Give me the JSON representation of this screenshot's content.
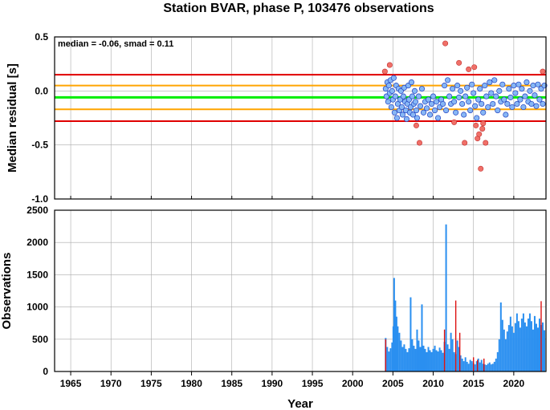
{
  "title": "Station BVAR, phase P, 103476 observations",
  "colors": {
    "median_line": "#00ee00",
    "smad_lines": "#ffa500",
    "outer_lines": "#e00000",
    "point_fill": "#87b7f5",
    "point_stroke": "#2040c0",
    "outlier_fill": "#f07068",
    "bar_fill": "#2a8ff0",
    "bar_highlight": "#dd1111"
  },
  "chart_data": [
    {
      "type": "scatter",
      "ylabel": "Median residual [s]",
      "ylim": [
        -1.0,
        0.5
      ],
      "xlim": [
        1963,
        2024
      ],
      "yticks": [
        "0.5",
        "0.0",
        "-0.5",
        "-1.0"
      ],
      "grid": true,
      "annotation": "median = -0.06, smad = 0.11",
      "reference_lines": [
        {
          "y": 0.15,
          "color": "red"
        },
        {
          "y": 0.05,
          "color": "orange"
        },
        {
          "y": -0.06,
          "color": "green"
        },
        {
          "y": -0.17,
          "color": "orange"
        },
        {
          "y": -0.28,
          "color": "red"
        }
      ],
      "inliers": [
        [
          2004.1,
          0.02
        ],
        [
          2004.2,
          -0.05
        ],
        [
          2004.3,
          0.08
        ],
        [
          2004.4,
          -0.1
        ],
        [
          2004.5,
          0.05
        ],
        [
          2004.6,
          -0.02
        ],
        [
          2004.7,
          0.1
        ],
        [
          2004.8,
          -0.15
        ],
        [
          2004.9,
          0.0
        ],
        [
          2005.0,
          -0.08
        ],
        [
          2005.1,
          0.12
        ],
        [
          2005.2,
          -0.2
        ],
        [
          2005.3,
          -0.05
        ],
        [
          2005.4,
          0.05
        ],
        [
          2005.5,
          -0.25
        ],
        [
          2005.6,
          -0.12
        ],
        [
          2005.7,
          0.02
        ],
        [
          2005.8,
          -0.18
        ],
        [
          2005.9,
          -0.08
        ],
        [
          2006.0,
          0.0
        ],
        [
          2006.1,
          -0.15
        ],
        [
          2006.2,
          -0.22
        ],
        [
          2006.3,
          -0.05
        ],
        [
          2006.4,
          0.03
        ],
        [
          2006.5,
          -0.1
        ],
        [
          2006.6,
          -0.18
        ],
        [
          2006.7,
          -0.26
        ],
        [
          2006.8,
          -0.12
        ],
        [
          2006.9,
          0.05
        ],
        [
          2007.0,
          -0.08
        ],
        [
          2007.1,
          -0.2
        ],
        [
          2007.2,
          -0.15
        ],
        [
          2007.3,
          0.08
        ],
        [
          2007.4,
          -0.05
        ],
        [
          2007.5,
          -0.22
        ],
        [
          2007.6,
          -0.12
        ],
        [
          2007.7,
          0.0
        ],
        [
          2007.8,
          -0.1
        ],
        [
          2007.9,
          -0.18
        ],
        [
          2008.0,
          -0.25
        ],
        [
          2008.2,
          -0.05
        ],
        [
          2008.4,
          -0.14
        ],
        [
          2008.6,
          0.02
        ],
        [
          2008.8,
          -0.2
        ],
        [
          2009.0,
          -0.1
        ],
        [
          2009.2,
          -0.16
        ],
        [
          2009.4,
          -0.08
        ],
        [
          2009.6,
          -0.22
        ],
        [
          2009.8,
          -0.12
        ],
        [
          2010.0,
          -0.05
        ],
        [
          2010.2,
          -0.18
        ],
        [
          2010.4,
          -0.1
        ],
        [
          2010.6,
          -0.25
        ],
        [
          2010.8,
          -0.15
        ],
        [
          2011.0,
          -0.08
        ],
        [
          2011.2,
          -0.12
        ],
        [
          2011.4,
          0.05
        ],
        [
          2011.6,
          -0.18
        ],
        [
          2011.8,
          0.1
        ],
        [
          2012.0,
          -0.05
        ],
        [
          2012.2,
          -0.12
        ],
        [
          2012.4,
          0.02
        ],
        [
          2012.6,
          -0.1
        ],
        [
          2012.8,
          -0.2
        ],
        [
          2013.0,
          0.05
        ],
        [
          2013.2,
          -0.06
        ],
        [
          2013.4,
          0.0
        ],
        [
          2013.6,
          -0.12
        ],
        [
          2013.8,
          -0.22
        ],
        [
          2014.0,
          -0.05
        ],
        [
          2014.2,
          0.03
        ],
        [
          2014.4,
          -0.1
        ],
        [
          2014.6,
          -0.18
        ],
        [
          2014.8,
          0.06
        ],
        [
          2015.0,
          -0.02
        ],
        [
          2015.2,
          -0.14
        ],
        [
          2015.4,
          -0.25
        ],
        [
          2015.6,
          -0.08
        ],
        [
          2015.8,
          0.02
        ],
        [
          2016.0,
          -0.12
        ],
        [
          2016.2,
          -0.2
        ],
        [
          2016.4,
          0.05
        ],
        [
          2016.6,
          -0.05
        ],
        [
          2016.8,
          -0.15
        ],
        [
          2017.0,
          0.08
        ],
        [
          2017.2,
          -0.02
        ],
        [
          2017.4,
          -0.12
        ],
        [
          2017.6,
          0.1
        ],
        [
          2017.8,
          -0.05
        ],
        [
          2018.0,
          -0.18
        ],
        [
          2018.2,
          0.0
        ],
        [
          2018.4,
          -0.1
        ],
        [
          2018.6,
          0.06
        ],
        [
          2018.8,
          -0.08
        ],
        [
          2019.0,
          -0.22
        ],
        [
          2019.2,
          -0.12
        ],
        [
          2019.4,
          0.02
        ],
        [
          2019.6,
          -0.06
        ],
        [
          2019.8,
          -0.15
        ],
        [
          2020.0,
          0.05
        ],
        [
          2020.2,
          -0.02
        ],
        [
          2020.4,
          -0.12
        ],
        [
          2020.6,
          0.06
        ],
        [
          2020.8,
          -0.08
        ],
        [
          2021.0,
          0.02
        ],
        [
          2021.2,
          -0.15
        ],
        [
          2021.4,
          -0.05
        ],
        [
          2021.6,
          0.08
        ],
        [
          2021.8,
          -0.1
        ],
        [
          2022.0,
          0.0
        ],
        [
          2022.2,
          -0.12
        ],
        [
          2022.4,
          0.05
        ],
        [
          2022.6,
          -0.04
        ],
        [
          2022.8,
          -0.14
        ],
        [
          2023.0,
          0.06
        ],
        [
          2023.2,
          -0.08
        ],
        [
          2023.4,
          0.02
        ],
        [
          2023.6,
          -0.12
        ],
        [
          2023.8,
          0.05
        ]
      ],
      "outliers": [
        [
          2004.0,
          0.18
        ],
        [
          2004.6,
          0.24
        ],
        [
          2007.9,
          -0.32
        ],
        [
          2008.3,
          -0.48
        ],
        [
          2011.5,
          0.44
        ],
        [
          2012.6,
          -0.29
        ],
        [
          2013.2,
          0.26
        ],
        [
          2013.9,
          -0.48
        ],
        [
          2014.4,
          0.2
        ],
        [
          2015.1,
          0.22
        ],
        [
          2015.3,
          -0.32
        ],
        [
          2015.5,
          -0.44
        ],
        [
          2015.7,
          -0.4
        ],
        [
          2015.9,
          -0.72
        ],
        [
          2016.2,
          -0.3
        ],
        [
          2016.5,
          -0.48
        ],
        [
          2016.1,
          -0.35
        ],
        [
          2023.6,
          0.18
        ]
      ]
    },
    {
      "type": "bar",
      "xlabel": "Year",
      "ylabel": "Observations",
      "ylim": [
        0,
        2500
      ],
      "xlim": [
        1963,
        2024
      ],
      "yticks": [
        "2500",
        "2000",
        "1500",
        "1000",
        "500",
        "0"
      ],
      "xticks": [
        "1965",
        "1970",
        "1975",
        "1980",
        "1985",
        "1990",
        "1995",
        "2000",
        "2005",
        "2010",
        "2015",
        "2020"
      ],
      "grid": true,
      "bars": [
        [
          2004.1,
          520
        ],
        [
          2004.3,
          380
        ],
        [
          2004.5,
          310
        ],
        [
          2004.7,
          360
        ],
        [
          2004.9,
          450
        ],
        [
          2005.05,
          700
        ],
        [
          2005.15,
          1450
        ],
        [
          2005.3,
          1100
        ],
        [
          2005.45,
          850
        ],
        [
          2005.6,
          700
        ],
        [
          2005.8,
          600
        ],
        [
          2006.0,
          480
        ],
        [
          2006.2,
          380
        ],
        [
          2006.4,
          420
        ],
        [
          2006.6,
          350
        ],
        [
          2006.8,
          300
        ],
        [
          2007.0,
          360
        ],
        [
          2007.2,
          1150
        ],
        [
          2007.4,
          500
        ],
        [
          2007.6,
          400
        ],
        [
          2007.8,
          350
        ],
        [
          2008.0,
          650
        ],
        [
          2008.2,
          480
        ],
        [
          2008.4,
          380
        ],
        [
          2008.6,
          1040
        ],
        [
          2008.8,
          400
        ],
        [
          2009.0,
          350
        ],
        [
          2009.2,
          300
        ],
        [
          2009.4,
          380
        ],
        [
          2009.6,
          330
        ],
        [
          2009.8,
          300
        ],
        [
          2010.0,
          350
        ],
        [
          2010.2,
          400
        ],
        [
          2010.4,
          330
        ],
        [
          2010.6,
          310
        ],
        [
          2010.8,
          370
        ],
        [
          2011.0,
          330
        ],
        [
          2011.2,
          290
        ],
        [
          2011.4,
          460
        ],
        [
          2011.6,
          2280
        ],
        [
          2011.8,
          420
        ],
        [
          2012.0,
          350
        ],
        [
          2012.2,
          600
        ],
        [
          2012.4,
          500
        ],
        [
          2012.6,
          300
        ],
        [
          2012.8,
          270
        ],
        [
          2013.0,
          480
        ],
        [
          2013.2,
          380
        ],
        [
          2013.4,
          250
        ],
        [
          2013.6,
          200
        ],
        [
          2013.8,
          160
        ],
        [
          2014.0,
          220
        ],
        [
          2014.2,
          150
        ],
        [
          2014.4,
          120
        ],
        [
          2014.6,
          180
        ],
        [
          2014.8,
          160
        ],
        [
          2015.0,
          130
        ],
        [
          2015.2,
          110
        ],
        [
          2015.4,
          160
        ],
        [
          2015.6,
          200
        ],
        [
          2015.8,
          140
        ],
        [
          2016.0,
          180
        ],
        [
          2016.2,
          120
        ],
        [
          2016.4,
          110
        ],
        [
          2016.6,
          100
        ],
        [
          2016.8,
          120
        ],
        [
          2017.0,
          140
        ],
        [
          2017.2,
          110
        ],
        [
          2017.4,
          120
        ],
        [
          2017.6,
          150
        ],
        [
          2017.8,
          200
        ],
        [
          2018.0,
          300
        ],
        [
          2018.2,
          500
        ],
        [
          2018.4,
          1070
        ],
        [
          2018.6,
          800
        ],
        [
          2018.8,
          650
        ],
        [
          2019.0,
          500
        ],
        [
          2019.2,
          620
        ],
        [
          2019.4,
          720
        ],
        [
          2019.6,
          850
        ],
        [
          2019.8,
          700
        ],
        [
          2020.0,
          600
        ],
        [
          2020.2,
          750
        ],
        [
          2020.4,
          900
        ],
        [
          2020.6,
          780
        ],
        [
          2020.8,
          680
        ],
        [
          2021.0,
          820
        ],
        [
          2021.2,
          900
        ],
        [
          2021.4,
          760
        ],
        [
          2021.6,
          700
        ],
        [
          2021.8,
          820
        ],
        [
          2022.0,
          900
        ],
        [
          2022.2,
          780
        ],
        [
          2022.4,
          650
        ],
        [
          2022.6,
          860
        ],
        [
          2022.8,
          740
        ],
        [
          2023.0,
          680
        ],
        [
          2023.2,
          820
        ],
        [
          2023.4,
          720
        ],
        [
          2023.6,
          760
        ],
        [
          2023.8,
          640
        ]
      ],
      "highlight_bars": [
        [
          2004.1,
          500
        ],
        [
          2011.4,
          650
        ],
        [
          2012.8,
          1100
        ],
        [
          2013.3,
          600
        ],
        [
          2015.0,
          220
        ],
        [
          2015.5,
          180
        ],
        [
          2016.3,
          200
        ],
        [
          2023.4,
          1090
        ]
      ]
    }
  ]
}
